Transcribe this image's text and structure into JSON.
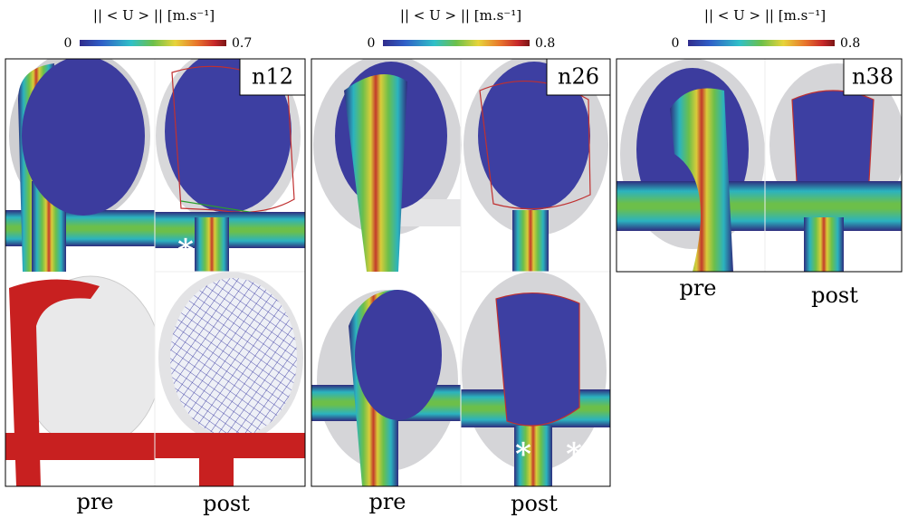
{
  "colorbars": [
    {
      "title": "|| < U > || [m.s⁻¹]",
      "min": 0,
      "max": 0.7
    },
    {
      "title": "|| < U > || [m.s⁻¹]",
      "min": 0,
      "max": 0.8
    },
    {
      "title": "|| < U > || [m.s⁻¹]",
      "min": 0,
      "max": 0.8
    }
  ],
  "cases": [
    {
      "label": "n12",
      "pre": "pre",
      "post": "post",
      "markers": [
        "*"
      ]
    },
    {
      "label": "n26",
      "pre": "pre",
      "post": "post",
      "markers": [
        "*",
        "*"
      ]
    },
    {
      "label": "n38",
      "pre": "pre",
      "post": "post"
    }
  ]
}
